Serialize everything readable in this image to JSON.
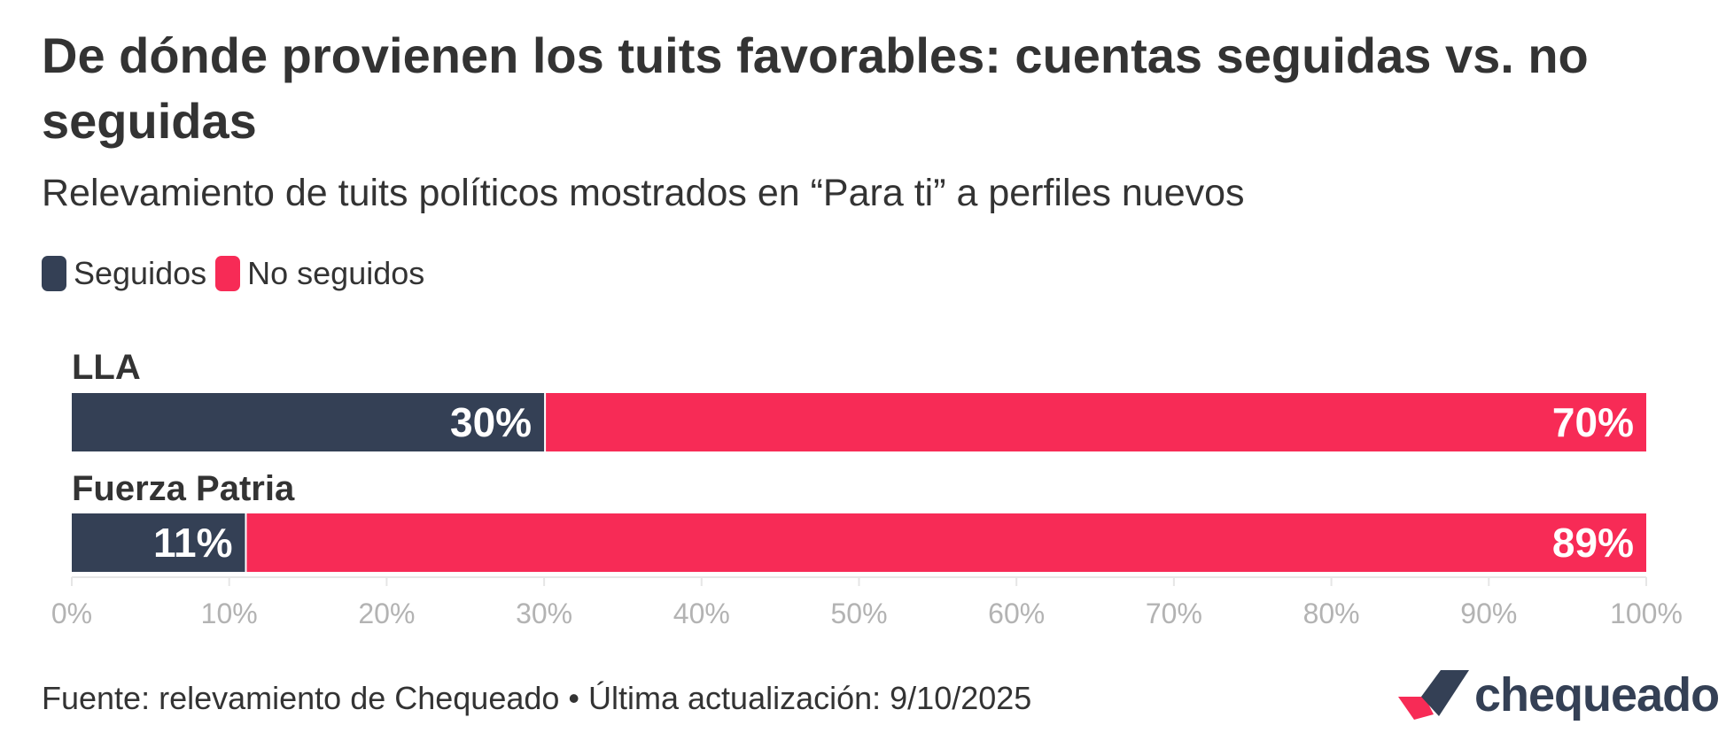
{
  "chart_data": {
    "type": "bar",
    "orientation": "horizontal",
    "stacked": true,
    "title": "De dónde provienen los tuits favorables: cuentas seguidas vs. no seguidas",
    "subtitle": "Relevamiento de tuits políticos mostrados en “Para ti” a perfiles nuevos",
    "categories": [
      "LLA",
      "Fuerza Patria"
    ],
    "series": [
      {
        "name": "Seguidos",
        "color": "#344055",
        "values": [
          30,
          11
        ],
        "labels": [
          "30%",
          "11%"
        ]
      },
      {
        "name": "No seguidos",
        "color": "#f72b56",
        "values": [
          70,
          89
        ],
        "labels": [
          "70%",
          "89%"
        ]
      }
    ],
    "xlim": [
      0,
      100
    ],
    "x_ticks": [
      0,
      10,
      20,
      30,
      40,
      50,
      60,
      70,
      80,
      90,
      100
    ],
    "x_tick_labels": [
      "0%",
      "10%",
      "20%",
      "30%",
      "40%",
      "50%",
      "60%",
      "70%",
      "80%",
      "90%",
      "100%"
    ],
    "legend_position": "top-left",
    "grid": false
  },
  "footer": {
    "source": "Fuente: relevamiento de Chequeado • Última actualización: 9/10/2025"
  },
  "logo": {
    "text": "chequeado",
    "colors": [
      "#f72b56",
      "#344055"
    ]
  }
}
